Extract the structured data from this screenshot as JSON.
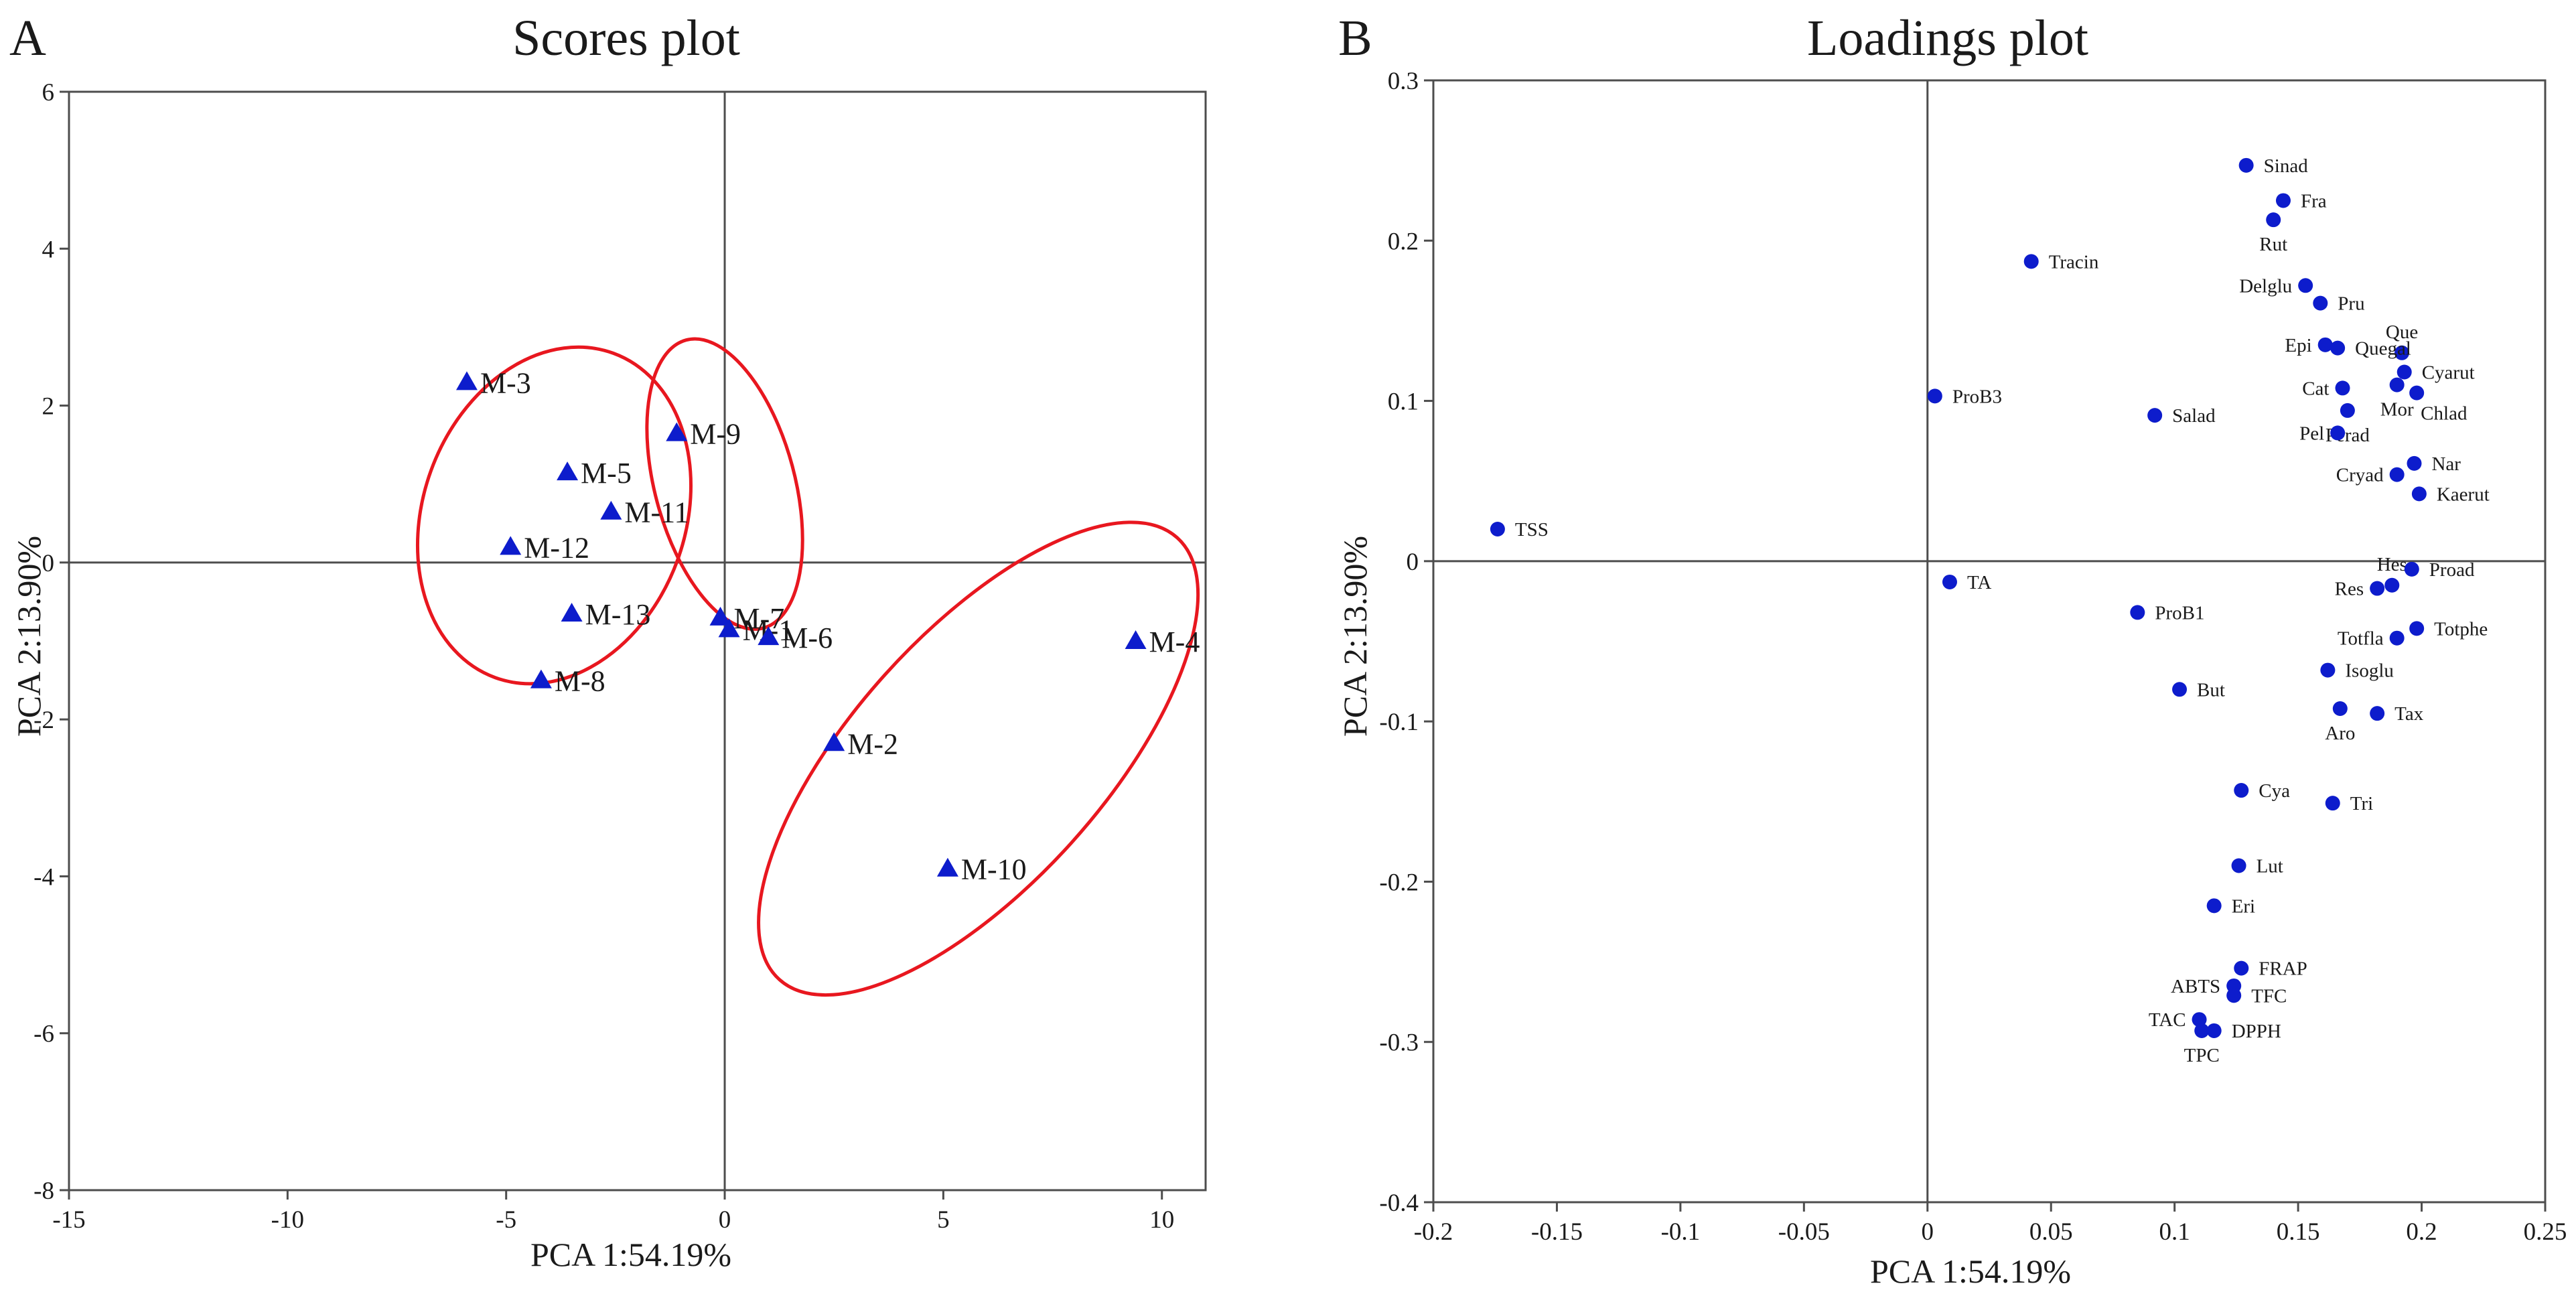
{
  "colors": {
    "marker": "#0d1ccc",
    "ellipse": "#e8171f",
    "axis": "#4d4d4d",
    "text": "#1a1a1a"
  },
  "chart_data": [
    {
      "panel": "A",
      "type": "scatter",
      "title": "Scores plot",
      "xlabel": "PCA 1:54.19%",
      "ylabel": "PCA 2:13.90%",
      "xlim": [
        -15,
        11
      ],
      "ylim": [
        -8,
        6
      ],
      "xticks": [
        -15,
        -10,
        -5,
        0,
        5,
        10
      ],
      "yticks": [
        -8,
        -6,
        -4,
        -2,
        0,
        2,
        4,
        6
      ],
      "marker": "triangle",
      "points": [
        {
          "label": "M-3",
          "x": -5.9,
          "y": 2.3
        },
        {
          "label": "M-5",
          "x": -3.6,
          "y": 1.15
        },
        {
          "label": "M-11",
          "x": -2.6,
          "y": 0.65
        },
        {
          "label": "M-12",
          "x": -4.9,
          "y": 0.2
        },
        {
          "label": "M-13",
          "x": -3.5,
          "y": -0.65
        },
        {
          "label": "M-8",
          "x": -4.2,
          "y": -1.5
        },
        {
          "label": "M-9",
          "x": -1.1,
          "y": 1.65
        },
        {
          "label": "M-7",
          "x": -0.1,
          "y": -0.7
        },
        {
          "label": "M-1",
          "x": 0.1,
          "y": -0.85
        },
        {
          "label": "M-6",
          "x": 1.0,
          "y": -0.95
        },
        {
          "label": "M-4",
          "x": 9.4,
          "y": -1.0
        },
        {
          "label": "M-2",
          "x": 2.5,
          "y": -2.3
        },
        {
          "label": "M-10",
          "x": 5.1,
          "y": -3.9
        }
      ],
      "groups": [
        {
          "cx": -3.9,
          "cy": 0.6,
          "rx": 3.0,
          "ry": 2.2,
          "rotate_deg": 20
        },
        {
          "cx": 0.0,
          "cy": 1.0,
          "rx": 1.6,
          "ry": 1.9,
          "rotate_deg": -15
        },
        {
          "cx": 5.8,
          "cy": -2.5,
          "rx": 6.8,
          "ry": 1.6,
          "rotate_deg": -48
        }
      ]
    },
    {
      "panel": "B",
      "type": "scatter",
      "title": "Loadings plot",
      "xlabel": "PCA 1:54.19%",
      "ylabel": "PCA 2:13.90%",
      "xlim": [
        -0.2,
        0.25
      ],
      "ylim": [
        -0.4,
        0.3
      ],
      "xticks": [
        -0.2,
        -0.15,
        -0.1,
        -0.05,
        0,
        0.05,
        0.1,
        0.15,
        0.2,
        0.25
      ],
      "yticks": [
        -0.4,
        -0.3,
        -0.2,
        -0.1,
        0,
        0.1,
        0.2,
        0.3
      ],
      "marker": "circle",
      "points": [
        {
          "label": "TSS",
          "x": -0.174,
          "y": 0.02,
          "pos": "r"
        },
        {
          "label": "ProB3",
          "x": 0.003,
          "y": 0.103,
          "pos": "r"
        },
        {
          "label": "Tracin",
          "x": 0.042,
          "y": 0.187,
          "pos": "r"
        },
        {
          "label": "Salad",
          "x": 0.092,
          "y": 0.091,
          "pos": "r"
        },
        {
          "label": "TA",
          "x": 0.009,
          "y": -0.013,
          "pos": "r"
        },
        {
          "label": "ProB1",
          "x": 0.085,
          "y": -0.032,
          "pos": "r"
        },
        {
          "label": "But",
          "x": 0.102,
          "y": -0.08,
          "pos": "r"
        },
        {
          "label": "Sinad",
          "x": 0.129,
          "y": 0.247,
          "pos": "r"
        },
        {
          "label": "Fra",
          "x": 0.144,
          "y": 0.225,
          "pos": "r"
        },
        {
          "label": "Rut",
          "x": 0.14,
          "y": 0.213,
          "pos": "b"
        },
        {
          "label": "Delglu",
          "x": 0.153,
          "y": 0.172,
          "pos": "l"
        },
        {
          "label": "Pru",
          "x": 0.159,
          "y": 0.161,
          "pos": "r"
        },
        {
          "label": "Que",
          "x": 0.192,
          "y": 0.13,
          "pos": "t"
        },
        {
          "label": "Epi",
          "x": 0.161,
          "y": 0.135,
          "pos": "l"
        },
        {
          "label": "Quegal",
          "x": 0.166,
          "y": 0.133,
          "pos": "r"
        },
        {
          "label": "Cyarut",
          "x": 0.193,
          "y": 0.118,
          "pos": "r"
        },
        {
          "label": "Cat",
          "x": 0.168,
          "y": 0.108,
          "pos": "l"
        },
        {
          "label": "Chlad",
          "x": 0.198,
          "y": 0.105,
          "pos": "br"
        },
        {
          "label": "Mor",
          "x": 0.19,
          "y": 0.11,
          "pos": "b"
        },
        {
          "label": "Perad",
          "x": 0.17,
          "y": 0.094,
          "pos": "b"
        },
        {
          "label": "Pel",
          "x": 0.166,
          "y": 0.08,
          "pos": "l"
        },
        {
          "label": "Nar",
          "x": 0.197,
          "y": 0.061,
          "pos": "r"
        },
        {
          "label": "Cryad",
          "x": 0.19,
          "y": 0.054,
          "pos": "l"
        },
        {
          "label": "Kaerut",
          "x": 0.199,
          "y": 0.042,
          "pos": "r"
        },
        {
          "label": "Hes",
          "x": 0.188,
          "y": -0.015,
          "pos": "t"
        },
        {
          "label": "Proad",
          "x": 0.196,
          "y": -0.005,
          "pos": "r"
        },
        {
          "label": "Res",
          "x": 0.182,
          "y": -0.017,
          "pos": "l"
        },
        {
          "label": "Totphe",
          "x": 0.198,
          "y": -0.042,
          "pos": "r"
        },
        {
          "label": "Totfla",
          "x": 0.19,
          "y": -0.048,
          "pos": "l"
        },
        {
          "label": "Isoglu",
          "x": 0.162,
          "y": -0.068,
          "pos": "r"
        },
        {
          "label": "Tax",
          "x": 0.182,
          "y": -0.095,
          "pos": "r"
        },
        {
          "label": "Aro",
          "x": 0.167,
          "y": -0.092,
          "pos": "b"
        },
        {
          "label": "Cya",
          "x": 0.127,
          "y": -0.143,
          "pos": "r"
        },
        {
          "label": "Tri",
          "x": 0.164,
          "y": -0.151,
          "pos": "r"
        },
        {
          "label": "Lut",
          "x": 0.126,
          "y": -0.19,
          "pos": "r"
        },
        {
          "label": "Eri",
          "x": 0.116,
          "y": -0.215,
          "pos": "r"
        },
        {
          "label": "FRAP",
          "x": 0.127,
          "y": -0.254,
          "pos": "r"
        },
        {
          "label": "ABTS",
          "x": 0.124,
          "y": -0.265,
          "pos": "l"
        },
        {
          "label": "TFC",
          "x": 0.124,
          "y": -0.271,
          "pos": "r"
        },
        {
          "label": "TAC",
          "x": 0.11,
          "y": -0.286,
          "pos": "l"
        },
        {
          "label": "DPPH",
          "x": 0.116,
          "y": -0.293,
          "pos": "r"
        },
        {
          "label": "TPC",
          "x": 0.111,
          "y": -0.293,
          "pos": "b"
        }
      ]
    }
  ]
}
